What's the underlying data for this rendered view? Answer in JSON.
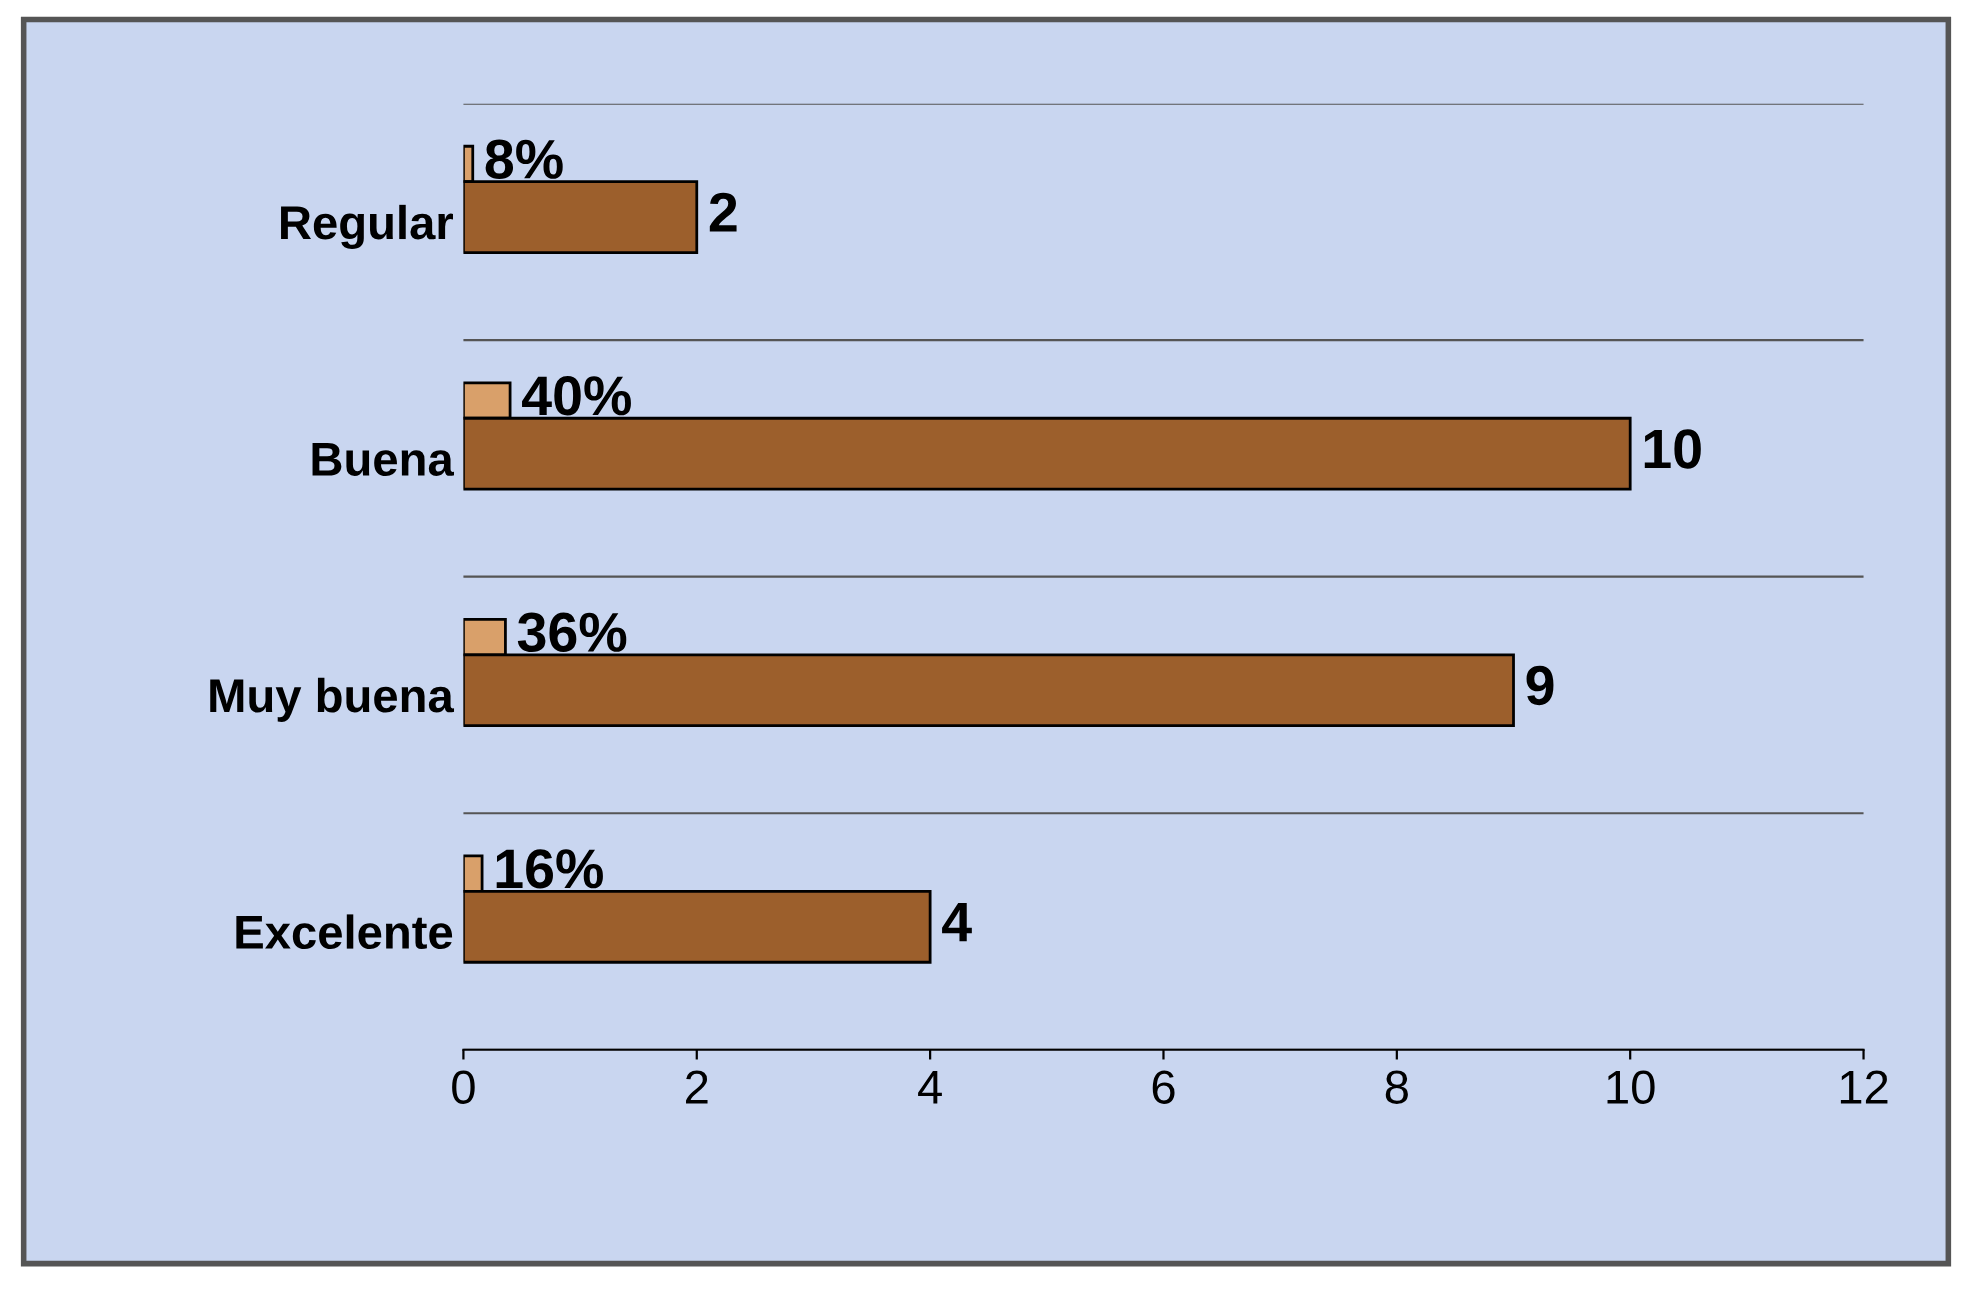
{
  "chart_data": {
    "type": "bar",
    "orientation": "horizontal",
    "categories": [
      "Regular",
      "Buena",
      "Muy buena",
      "Excelente"
    ],
    "series": [
      {
        "color": "#d9a06a",
        "values": [
          0.08,
          0.4,
          0.36,
          0.16
        ],
        "value_labels": [
          "8%",
          "40%",
          "36%",
          "16%"
        ]
      },
      {
        "color": "#9c5f2c",
        "values": [
          2,
          10,
          9,
          4
        ],
        "value_labels": [
          "2",
          "10",
          "9",
          "4"
        ]
      }
    ],
    "xlim": [
      0,
      12
    ],
    "xticks": [
      0,
      2,
      4,
      6,
      8,
      10,
      12
    ],
    "grid": "y",
    "legend": false
  }
}
